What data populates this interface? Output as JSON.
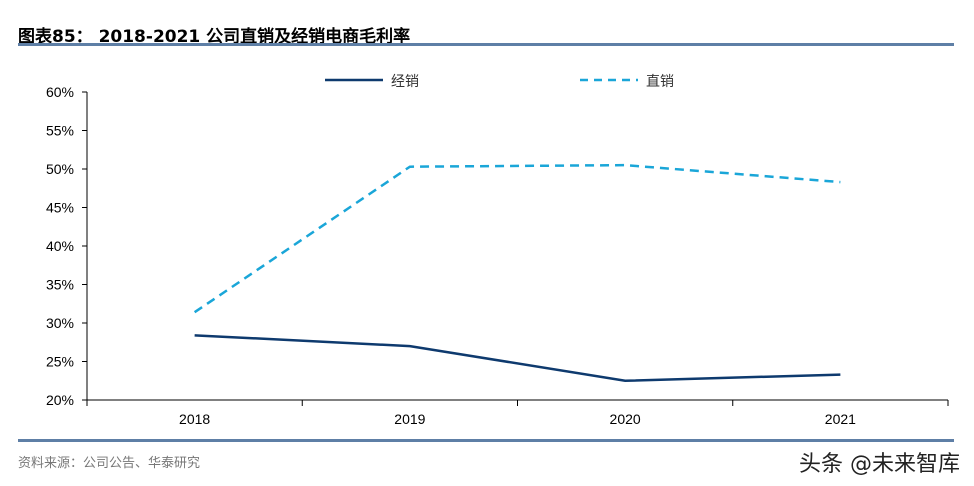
{
  "header": {
    "title": "图表85： 2018-2021 公司直销及经销电商毛利率"
  },
  "footer": {
    "source": "资料来源：公司公告、华泰研究",
    "watermark": "头条 @未来智库"
  },
  "chart_data": {
    "type": "line",
    "categories": [
      "2018",
      "2019",
      "2020",
      "2021"
    ],
    "series": [
      {
        "name": "经销",
        "values": [
          28.4,
          27.0,
          22.5,
          23.3
        ],
        "color": "#0e3a6e",
        "style": "solid"
      },
      {
        "name": "直销",
        "values": [
          31.4,
          50.3,
          50.5,
          48.3
        ],
        "color": "#1aa6d8",
        "style": "dashed"
      }
    ],
    "ylim": [
      20,
      60
    ],
    "yticks": [
      "20%",
      "25%",
      "30%",
      "35%",
      "40%",
      "45%",
      "50%",
      "55%",
      "60%"
    ],
    "legend": "top",
    "grid": false
  }
}
